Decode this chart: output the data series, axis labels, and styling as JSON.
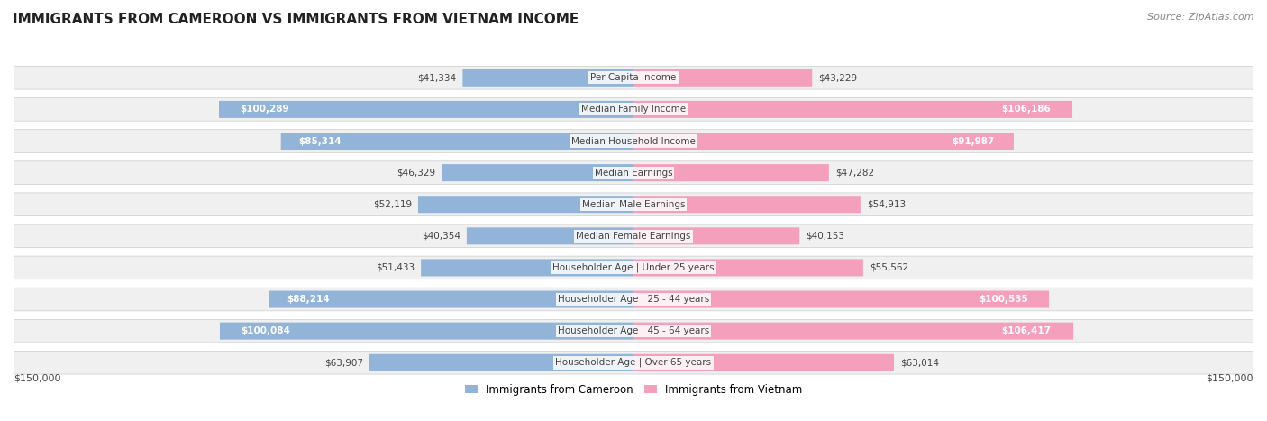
{
  "title": "IMMIGRANTS FROM CAMEROON VS IMMIGRANTS FROM VIETNAM INCOME",
  "source": "Source: ZipAtlas.com",
  "categories": [
    "Per Capita Income",
    "Median Family Income",
    "Median Household Income",
    "Median Earnings",
    "Median Male Earnings",
    "Median Female Earnings",
    "Householder Age | Under 25 years",
    "Householder Age | 25 - 44 years",
    "Householder Age | 45 - 64 years",
    "Householder Age | Over 65 years"
  ],
  "cameroon_values": [
    41334,
    100289,
    85314,
    46329,
    52119,
    40354,
    51433,
    88214,
    100084,
    63907
  ],
  "vietnam_values": [
    43229,
    106186,
    91987,
    47282,
    54913,
    40153,
    55562,
    100535,
    106417,
    63014
  ],
  "cameroon_labels": [
    "$41,334",
    "$100,289",
    "$85,314",
    "$46,329",
    "$52,119",
    "$40,354",
    "$51,433",
    "$88,214",
    "$100,084",
    "$63,907"
  ],
  "vietnam_labels": [
    "$43,229",
    "$106,186",
    "$91,987",
    "$47,282",
    "$54,913",
    "$40,153",
    "$55,562",
    "$100,535",
    "$106,417",
    "$63,014"
  ],
  "max_value": 150000,
  "cameroon_color_bar": "#92b4d9",
  "vietnam_color_bar": "#f4a0bc",
  "cameroon_color_fill": "#5b9bd5",
  "vietnam_color_fill": "#f06090",
  "label_inside_threshold": 80000,
  "background_color": "#ffffff",
  "row_bg_color": "#f0f0f0",
  "legend_cameroon": "Immigrants from Cameroon",
  "legend_vietnam": "Immigrants from Vietnam",
  "axis_label_left": "$150,000",
  "axis_label_right": "$150,000"
}
